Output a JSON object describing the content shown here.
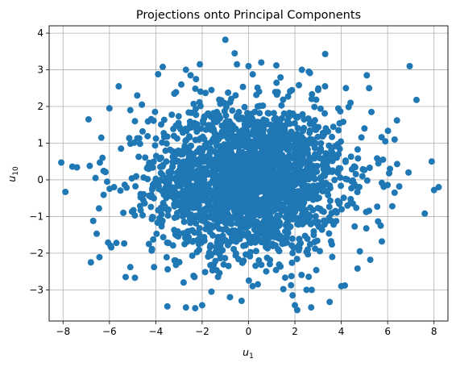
{
  "chart_data": {
    "type": "scatter",
    "title": "Projections onto Principal Components",
    "xlabel": {
      "base": "u",
      "sub": "1"
    },
    "ylabel": {
      "base": "u",
      "sub": "10"
    },
    "xlim": [
      -8.6,
      8.6
    ],
    "ylim": [
      -3.85,
      4.2
    ],
    "xticks": [
      -8,
      -6,
      -4,
      -2,
      0,
      2,
      4,
      6,
      8
    ],
    "yticks": [
      -3,
      -2,
      -1,
      0,
      1,
      2,
      3,
      4
    ],
    "grid": true,
    "marker_color": "#1f77b4",
    "distribution": {
      "x_std": 2.0,
      "y_std": 1.0,
      "n_points": 2500
    },
    "points": [
      [
        -7.9,
        -0.33
      ],
      [
        -7.6,
        0.36
      ],
      [
        -7.4,
        0.34
      ],
      [
        -6.9,
        1.65
      ],
      [
        -6.85,
        0.38
      ],
      [
        -6.8,
        -2.25
      ],
      [
        -6.7,
        -1.12
      ],
      [
        -6.6,
        0.05
      ],
      [
        -6.55,
        -1.47
      ],
      [
        -6.45,
        -0.78
      ],
      [
        -6.35,
        1.15
      ],
      [
        -6.25,
        -0.41
      ],
      [
        -6.1,
        -0.05
      ],
      [
        -6.0,
        1.95
      ],
      [
        -5.95,
        -1.8
      ],
      [
        -5.7,
        -1.72
      ],
      [
        -5.6,
        2.55
      ],
      [
        -5.5,
        0.85
      ],
      [
        -5.3,
        -2.65
      ],
      [
        -5.1,
        -2.38
      ],
      [
        -4.9,
        -2.67
      ],
      [
        -4.9,
        1.6
      ],
      [
        -4.6,
        2.05
      ],
      [
        -4.3,
        -1.75
      ],
      [
        -3.9,
        2.88
      ],
      [
        -3.7,
        3.08
      ],
      [
        -3.5,
        -3.45
      ],
      [
        -3.2,
        2.35
      ],
      [
        -2.9,
        2.6
      ],
      [
        -2.8,
        -2.8
      ],
      [
        -2.7,
        3.0
      ],
      [
        -2.7,
        -3.48
      ],
      [
        -2.5,
        2.85
      ],
      [
        -2.3,
        -3.5
      ],
      [
        -2.1,
        3.15
      ],
      [
        -2.0,
        -3.42
      ],
      [
        -1.6,
        -3.05
      ],
      [
        -1.6,
        2.45
      ],
      [
        -1.0,
        3.82
      ],
      [
        -0.8,
        -3.2
      ],
      [
        -0.6,
        3.45
      ],
      [
        -0.5,
        3.15
      ],
      [
        -0.3,
        -3.3
      ],
      [
        0.0,
        3.1
      ],
      [
        0.4,
        -2.85
      ],
      [
        0.55,
        3.2
      ],
      [
        1.2,
        3.12
      ],
      [
        1.5,
        -2.98
      ],
      [
        1.9,
        -3.15
      ],
      [
        2.0,
        -3.42
      ],
      [
        2.1,
        -3.55
      ],
      [
        2.5,
        -3.0
      ],
      [
        2.3,
        3.0
      ],
      [
        2.6,
        2.95
      ],
      [
        2.7,
        -3.48
      ],
      [
        3.0,
        2.45
      ],
      [
        3.3,
        2.55
      ],
      [
        3.5,
        -3.33
      ],
      [
        4.0,
        -2.9
      ],
      [
        4.2,
        2.5
      ],
      [
        4.4,
        2.1
      ],
      [
        4.7,
        -2.42
      ],
      [
        5.0,
        1.4
      ],
      [
        5.1,
        2.85
      ],
      [
        5.2,
        2.5
      ],
      [
        5.25,
        -2.18
      ],
      [
        5.3,
        1.85
      ],
      [
        5.6,
        0.45
      ],
      [
        5.7,
        -1.25
      ],
      [
        5.75,
        -1.68
      ],
      [
        5.9,
        1.05
      ],
      [
        6.1,
        0.3
      ],
      [
        6.2,
        -0.72
      ],
      [
        6.4,
        1.62
      ],
      [
        6.5,
        -0.18
      ],
      [
        6.9,
        0.2
      ],
      [
        6.95,
        3.1
      ],
      [
        7.6,
        -0.92
      ],
      [
        7.9,
        0.5
      ],
      [
        8.0,
        -0.28
      ],
      [
        8.2,
        -0.2
      ],
      [
        6.3,
        1.1
      ],
      [
        6.3,
        -0.35
      ],
      [
        5.8,
        0.55
      ],
      [
        4.8,
        -1.95
      ],
      [
        -5.1,
        1.9
      ],
      [
        -4.8,
        2.3
      ],
      [
        -5.8,
        -0.2
      ],
      [
        -6.3,
        0.6
      ],
      [
        -5.4,
        -0.9
      ]
    ]
  }
}
